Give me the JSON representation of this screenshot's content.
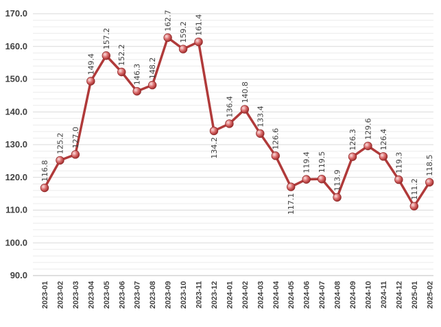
{
  "chart_data": {
    "type": "line",
    "categories": [
      "2023-01",
      "2023-02",
      "2023-03",
      "2023-04",
      "2023-05",
      "2023-06",
      "2023-07",
      "2023-08",
      "2023-09",
      "2023-10",
      "2023-11",
      "2023-12",
      "2024-01",
      "2024-02",
      "2024-03",
      "2024-04",
      "2024-05",
      "2024-06",
      "2024-07",
      "2024-08",
      "2024-09",
      "2024-10",
      "2024-11",
      "2024-12",
      "2025-01",
      "2025-02"
    ],
    "series": [
      {
        "values": [
          116.8,
          125.2,
          127.0,
          149.4,
          157.2,
          152.2,
          146.3,
          148.2,
          162.7,
          159.2,
          161.4,
          134.2,
          136.4,
          140.8,
          133.4,
          126.6,
          117.1,
          119.4,
          119.5,
          113.9,
          126.3,
          129.6,
          126.4,
          119.3,
          111.2,
          118.5
        ],
        "labels": [
          "116.8",
          "125.2",
          "127.0",
          "149.4",
          "157.2",
          "152.2",
          "146.3",
          "148.2",
          "162.7",
          "159.2",
          "161.4",
          "134.2",
          "136.4",
          "140.8",
          "133.4",
          "126.6",
          "117.1",
          "119.4",
          "119.5",
          "113.9",
          "126.3",
          "129.6",
          "126.4",
          "119.3",
          "111.2",
          "118.5"
        ],
        "color": "#b03a3a",
        "marker_color": "#d96a6a"
      }
    ],
    "yticks": [
      "90.0",
      "100.0",
      "110.0",
      "120.0",
      "130.0",
      "140.0",
      "150.0",
      "160.0",
      "170.0"
    ],
    "ylim": [
      90,
      170
    ],
    "grid": true,
    "legend": "none"
  }
}
